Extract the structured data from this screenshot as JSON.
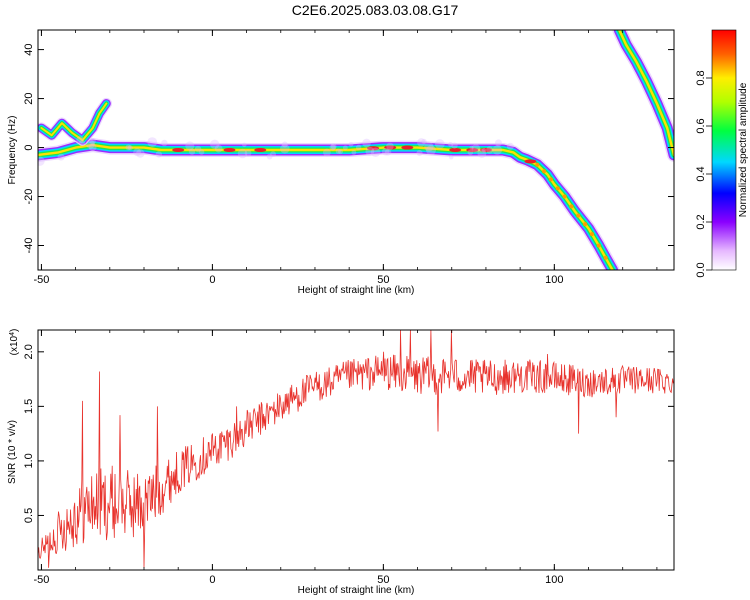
{
  "title": "C2E6.2025.083.03.08.G17",
  "colors": {
    "signal": "#e8322c",
    "frame": "#000000",
    "background": "#ffffff"
  },
  "chart_data": [
    {
      "type": "heatmap",
      "title": "",
      "xlabel": "Height of straight line (km)",
      "ylabel": "Frequency (Hz)",
      "xlim": [
        -51,
        135
      ],
      "ylim": [
        -50,
        48
      ],
      "xticks": [
        -50,
        0,
        50,
        100
      ],
      "xtick_labels": [
        "-50",
        "0",
        "50",
        "100"
      ],
      "yticks": [
        40,
        20,
        0,
        -20,
        -40
      ],
      "ytick_labels": [
        "40",
        "20",
        "0",
        "-20",
        "-40"
      ],
      "colorbar": {
        "label": "Normalized spectral amplitude",
        "range": [
          0,
          1
        ],
        "ticks": [
          0.0,
          0.2,
          0.4,
          0.6,
          0.8
        ],
        "tick_labels": [
          "0.0",
          "0.2",
          "0.4",
          "0.6",
          "0.8"
        ],
        "colormap": "rainbow"
      },
      "traces": [
        {
          "name": "main",
          "x": [
            -51,
            -45,
            -40,
            -35,
            -30,
            -25,
            -20,
            -15,
            -10,
            -5,
            0,
            10,
            20,
            30,
            40,
            50,
            60,
            70,
            80,
            85,
            88,
            90,
            92,
            95,
            98,
            100,
            103,
            106,
            110,
            113,
            115,
            117
          ],
          "y": [
            -3,
            -2,
            0,
            1,
            0,
            0,
            0,
            -1,
            -1,
            -1,
            -1,
            -1,
            -1,
            -1,
            -1,
            0,
            0,
            -1,
            -1,
            -1,
            -2,
            -4,
            -5,
            -7,
            -11,
            -15,
            -20,
            -26,
            -33,
            -40,
            -45,
            -50
          ]
        },
        {
          "name": "ascending-upper",
          "x": [
            119,
            121,
            124,
            127,
            130,
            133,
            135
          ],
          "y": [
            48,
            42,
            35,
            27,
            18,
            8,
            -3
          ]
        },
        {
          "name": "early-scatter",
          "x": [
            -50,
            -47,
            -44,
            -41,
            -38,
            -35,
            -33,
            -31
          ],
          "y": [
            8,
            5,
            10,
            6,
            3,
            8,
            14,
            18
          ]
        }
      ]
    },
    {
      "type": "line",
      "title": "",
      "xlabel": "Height of straight line (km)",
      "ylabel": "SNR (10 * v/v)",
      "y_multiplier_label": "(x10",
      "y_multiplier_exp": "4",
      "y_multiplier_close": ")",
      "xlim": [
        -51,
        135
      ],
      "ylim": [
        0,
        2.2
      ],
      "xticks": [
        -50,
        0,
        50,
        100
      ],
      "xtick_labels": [
        "-50",
        "0",
        "50",
        "100"
      ],
      "yticks": [
        0.5,
        1.0,
        1.5,
        2.0
      ],
      "ytick_labels": [
        "0.5",
        "1.0",
        "1.5",
        "2.0"
      ],
      "series": [
        {
          "color": "#e8322c",
          "trend_x": [
            -51,
            -45,
            -40,
            -35,
            -30,
            -25,
            -20,
            -15,
            -10,
            -5,
            0,
            5,
            10,
            15,
            20,
            25,
            30,
            35,
            40,
            45,
            50,
            55,
            60,
            70,
            80,
            90,
            100,
            110,
            120,
            130,
            135
          ],
          "trend_y": [
            0.15,
            0.35,
            0.5,
            0.6,
            0.62,
            0.6,
            0.6,
            0.75,
            0.9,
            1.0,
            1.1,
            1.18,
            1.3,
            1.4,
            1.5,
            1.6,
            1.68,
            1.72,
            1.78,
            1.8,
            1.82,
            1.8,
            1.78,
            1.78,
            1.76,
            1.78,
            1.76,
            1.72,
            1.74,
            1.74,
            1.72
          ],
          "spread_x": [
            -51,
            -40,
            -30,
            -20,
            -10,
            0,
            20,
            40,
            60,
            100,
            135
          ],
          "spread_y": [
            0.08,
            0.3,
            0.35,
            0.3,
            0.2,
            0.18,
            0.15,
            0.15,
            0.18,
            0.15,
            0.12
          ],
          "spikes": [
            [
              -33,
              1.82
            ],
            [
              -38,
              1.55
            ],
            [
              -27,
              1.42
            ],
            [
              -16,
              1.5
            ],
            [
              7,
              1.5
            ],
            [
              55,
              2.2
            ],
            [
              58,
              2.2
            ],
            [
              64,
              2.2
            ],
            [
              70,
              2.2
            ],
            [
              50,
              2.0
            ],
            [
              98,
              1.98
            ],
            [
              -20,
              0.02
            ],
            [
              -48,
              0.02
            ],
            [
              66,
              1.27
            ],
            [
              107,
              1.25
            ],
            [
              118,
              1.4
            ]
          ]
        }
      ]
    }
  ]
}
